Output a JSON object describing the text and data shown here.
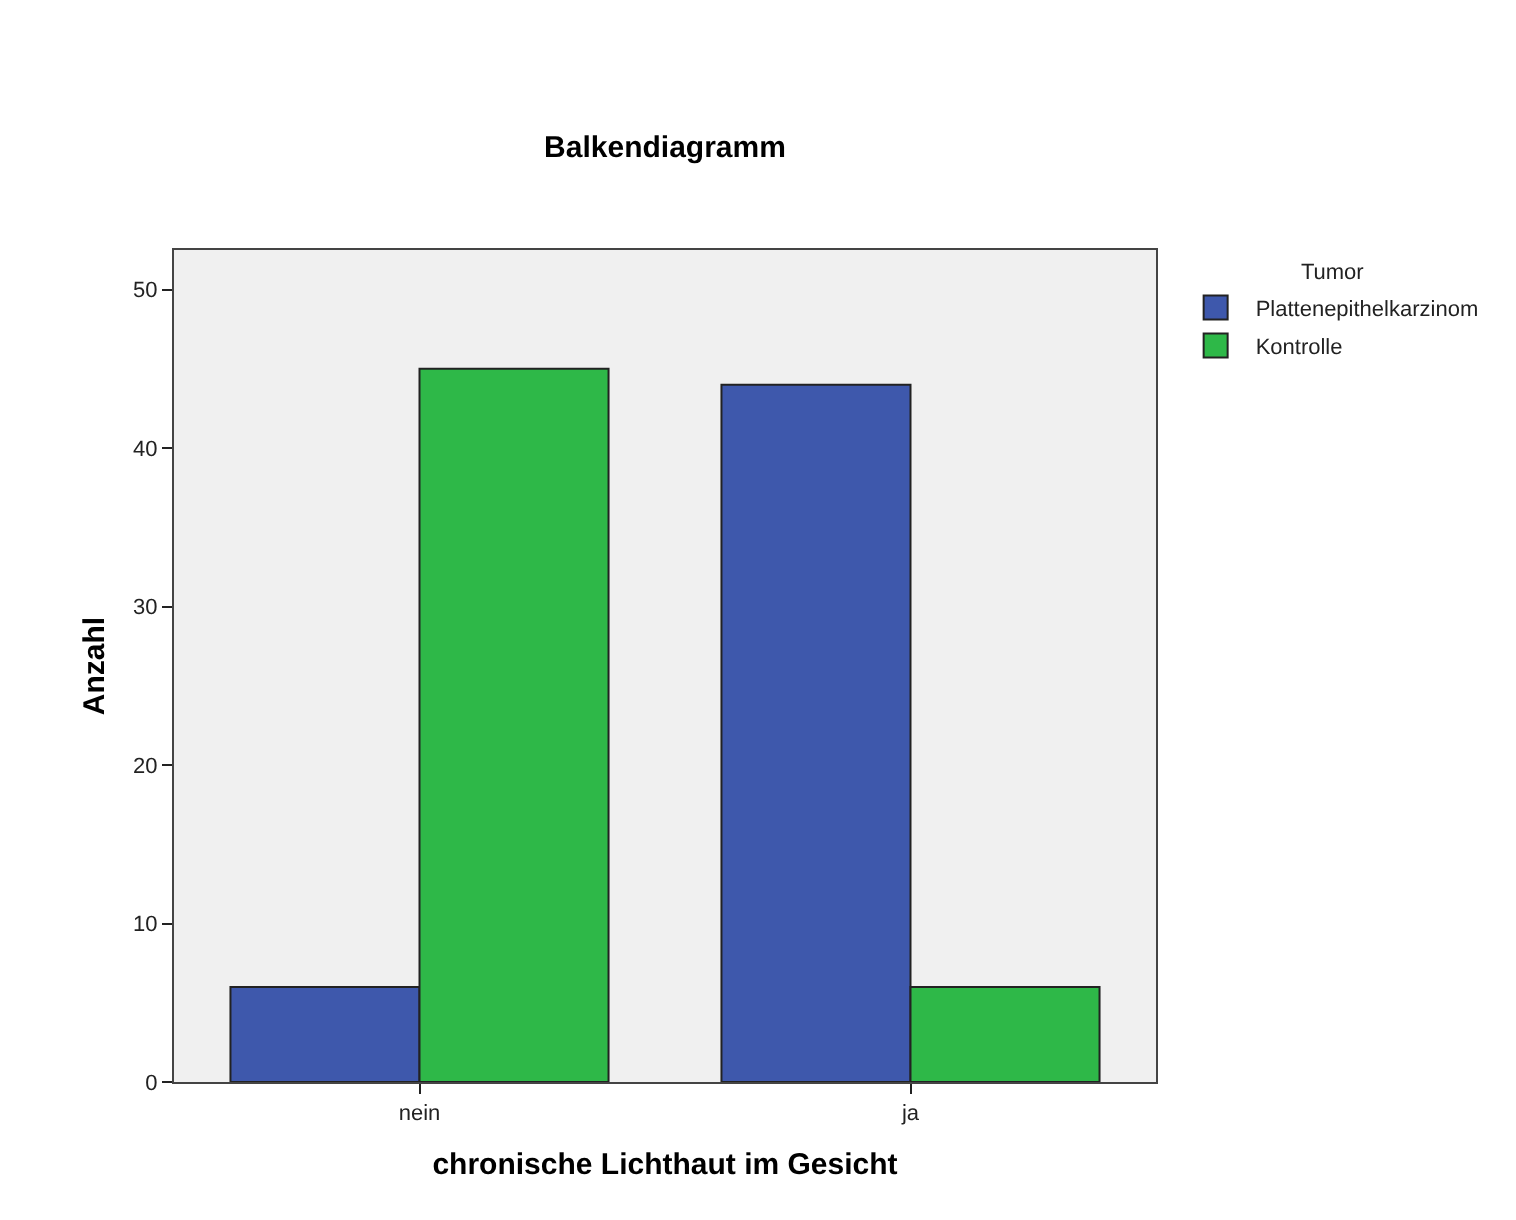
{
  "chart_data": {
    "type": "bar",
    "title": "Balkendiagramm",
    "xlabel": "chronische Lichthaut im Gesicht",
    "ylabel": "Anzahl",
    "legend_title": "Tumor",
    "categories": [
      "nein",
      "ja"
    ],
    "series": [
      {
        "name": "Plattenepithelkarzinom",
        "color": "#3e58ac",
        "values": [
          6,
          44
        ]
      },
      {
        "name": "Kontrolle",
        "color": "#2eb848",
        "values": [
          45,
          6
        ]
      }
    ],
    "ylim": [
      0,
      52.5
    ],
    "yticks": [
      0,
      10,
      20,
      30,
      40,
      50
    ],
    "grid": false,
    "legend": "top right"
  }
}
